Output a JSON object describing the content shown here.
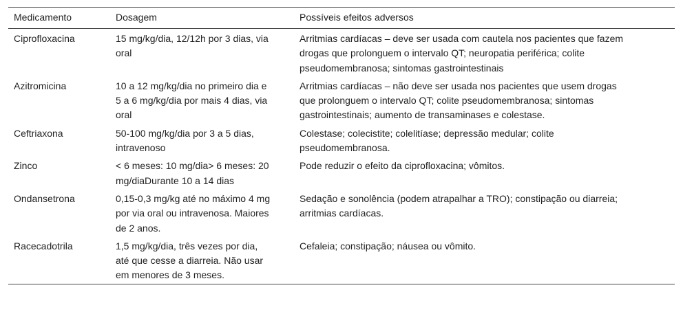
{
  "table": {
    "header": [
      "Medicamento",
      "Dosagem",
      "Possíveis efeitos adversos"
    ],
    "rows": [
      [
        "Ciprofloxacina",
        "15 mg/kg/dia, 12/12h por 3 dias, via oral",
        "Arritmias cardíacas – deve ser usada com cautela nos pacientes que fazem drogas que prolonguem o intervalo QT; neuropatia periférica; colite pseudomembranosa; sintomas gastrointestinais"
      ],
      [
        "Azitromicina",
        "10 a 12 mg/kg/dia no primeiro dia e 5 a 6 mg/kg/dia por mais 4 dias, via oral",
        "Arritmias cardíacas – não deve ser usada nos pacientes que usem drogas que prolonguem o intervalo QT; colite pseudomembranosa; sintomas gastrointestinais; aumento de transaminases e colestase."
      ],
      [
        "Ceftriaxona",
        "50-100 mg/kg/dia por 3 a 5 dias, intravenoso",
        "Colestase; colecistite; colelitíase; depressão medular; colite pseudomembranosa."
      ],
      [
        "Zinco",
        "< 6 meses: 10 mg/dia> 6 meses: 20 mg/diaDurante 10 a 14 dias",
        "Pode reduzir o efeito da ciprofloxacina; vômitos."
      ],
      [
        "Ondansetrona",
        "0,15-0,3 mg/kg até no máximo 4 mg por via oral ou intravenosa. Maiores de 2 anos.",
        "Sedação e sonolência (podem atrapalhar a TRO); constipação ou diarreia; arritmias cardíacas."
      ],
      [
        "Racecadotrila",
        "1,5 mg/kg/dia, três vezes por dia, até que cesse a diarreia. Não usar em menores de 3 meses.",
        "Cefaleia; constipação; náusea ou vômito."
      ]
    ]
  }
}
